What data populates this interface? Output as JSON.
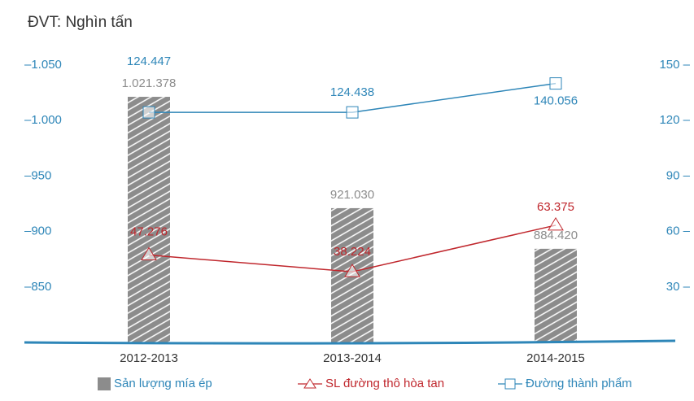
{
  "chart_data": {
    "type": "bar",
    "title": "ĐVT: Nghìn tấn",
    "categories": [
      "2012-2013",
      "2013-2014",
      "2014-2015"
    ],
    "series": [
      {
        "name": "Sản lượng mía ép",
        "type": "bar",
        "color": "#8c8c8c",
        "values": [
          1021.378,
          921.03,
          884.42
        ],
        "value_labels": [
          "1.021.378",
          "921.030",
          "884.420"
        ]
      },
      {
        "name": "SL đường thô hòa tan",
        "type": "line",
        "axis": "y2",
        "marker": "triangle",
        "color": "#c0272d",
        "values": [
          47.276,
          38.224,
          63.375
        ],
        "value_labels": [
          "47.276",
          "38.224",
          "63.375"
        ]
      },
      {
        "name": "Đường thành phẩm",
        "type": "line",
        "axis": "y2",
        "marker": "square",
        "color": "#2e86b8",
        "values": [
          124.447,
          124.438,
          140.056
        ],
        "value_labels": [
          "124.447",
          "124.438",
          "140.056"
        ]
      }
    ],
    "ylim": [
      800,
      1050
    ],
    "yticks": [
      {
        "value": 850,
        "label": "–850"
      },
      {
        "value": 900,
        "label": "–900"
      },
      {
        "value": 950,
        "label": "–950"
      },
      {
        "value": 1000,
        "label": "–1.000"
      },
      {
        "value": 1050,
        "label": "–1.050"
      }
    ],
    "y2lim": [
      0,
      150
    ],
    "y2ticks": [
      {
        "value": 30,
        "label": "30 –"
      },
      {
        "value": 60,
        "label": "60 –"
      },
      {
        "value": 90,
        "label": "90 –"
      },
      {
        "value": 120,
        "label": "120 –"
      },
      {
        "value": 150,
        "label": "150 –"
      }
    ]
  }
}
